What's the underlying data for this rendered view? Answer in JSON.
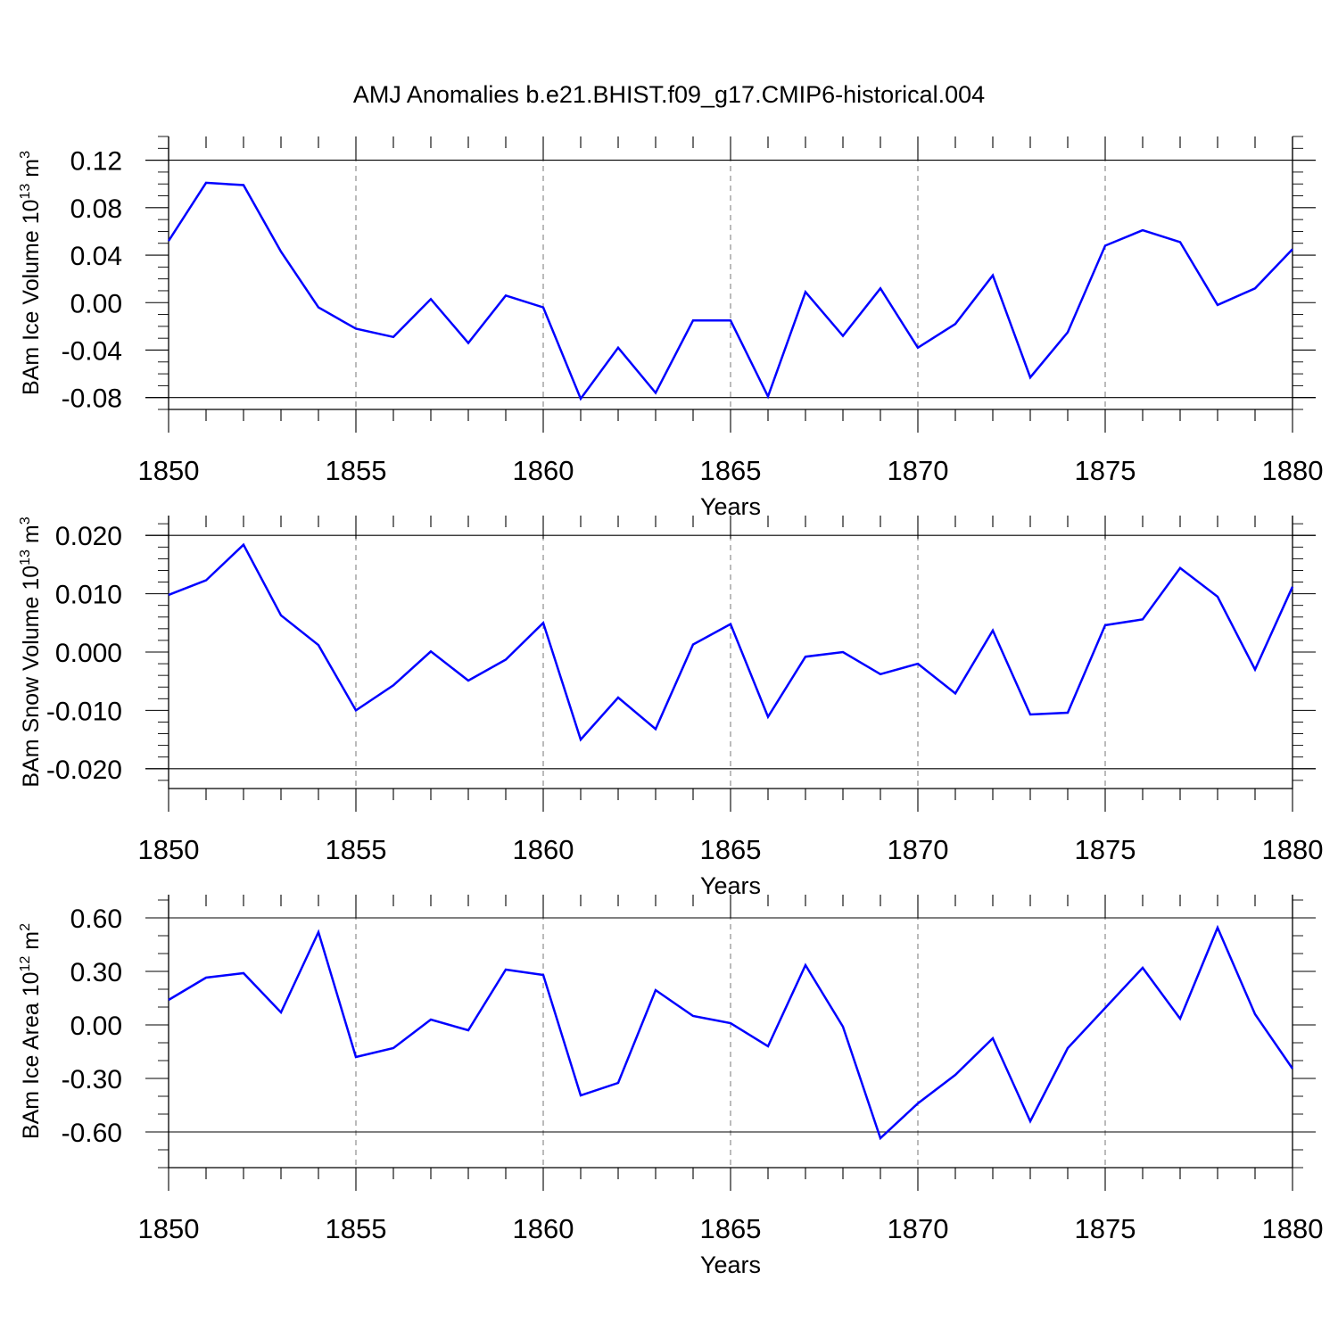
{
  "title": "AMJ Anomalies b.e21.BHIST.f09_g17.CMIP6-historical.004",
  "colors": {
    "line": "#0000ff",
    "axis": "#000000",
    "grid": "#777777"
  },
  "chart_data": [
    {
      "type": "line",
      "xlabel": "Years",
      "ylabel_main": "BAm Ice Volume 10",
      "ylabel_sup1": "13",
      "ylabel_unit": " m",
      "ylabel_sup2": "3",
      "xlim": [
        1850,
        1880
      ],
      "ylim": [
        -0.09,
        0.14
      ],
      "y_ticks": [
        -0.08,
        -0.04,
        0.0,
        0.04,
        0.08,
        0.12
      ],
      "y_tick_labels": [
        "-0.08",
        "-0.04",
        "0.00",
        "0.04",
        "0.08",
        "0.12"
      ],
      "y_minor_step": 0.01,
      "x_ticks": [
        1850,
        1855,
        1860,
        1865,
        1870,
        1875,
        1880
      ],
      "x_tick_labels": [
        "1850",
        "1855",
        "1860",
        "1865",
        "1870",
        "1875",
        "1880"
      ],
      "grid": "vertical dashed at major x ticks",
      "x": [
        1850,
        1851,
        1852,
        1853,
        1854,
        1855,
        1856,
        1857,
        1858,
        1859,
        1860,
        1861,
        1862,
        1863,
        1864,
        1865,
        1866,
        1867,
        1868,
        1869,
        1870,
        1871,
        1872,
        1873,
        1874,
        1875,
        1876,
        1877,
        1878,
        1879,
        1880
      ],
      "values": [
        0.052,
        0.101,
        0.099,
        0.043,
        -0.004,
        -0.022,
        -0.029,
        0.003,
        -0.034,
        0.006,
        -0.004,
        -0.081,
        -0.038,
        -0.076,
        -0.015,
        -0.015,
        -0.079,
        0.009,
        -0.028,
        0.012,
        -0.038,
        -0.018,
        0.023,
        -0.063,
        -0.025,
        0.048,
        0.061,
        0.051,
        -0.002,
        0.012,
        0.045
      ]
    },
    {
      "type": "line",
      "xlabel": "Years",
      "ylabel_main": "BAm Snow Volume 10",
      "ylabel_sup1": "13",
      "ylabel_unit": " m",
      "ylabel_sup2": "3",
      "xlim": [
        1850,
        1880
      ],
      "ylim": [
        -0.0234,
        0.0234
      ],
      "y_ticks": [
        -0.02,
        -0.01,
        0.0,
        0.01,
        0.02
      ],
      "y_tick_labels": [
        "-0.020",
        "-0.010",
        "0.000",
        "0.010",
        "0.020"
      ],
      "y_minor_step": 0.002,
      "x_ticks": [
        1850,
        1855,
        1860,
        1865,
        1870,
        1875,
        1880
      ],
      "x_tick_labels": [
        "1850",
        "1855",
        "1860",
        "1865",
        "1870",
        "1875",
        "1880"
      ],
      "grid": "vertical dashed at major x ticks",
      "x": [
        1850,
        1851,
        1852,
        1853,
        1854,
        1855,
        1856,
        1857,
        1858,
        1859,
        1860,
        1861,
        1862,
        1863,
        1864,
        1865,
        1866,
        1867,
        1868,
        1869,
        1870,
        1871,
        1872,
        1873,
        1874,
        1875,
        1876,
        1877,
        1878,
        1879,
        1880
      ],
      "values": [
        0.0098,
        0.0123,
        0.0184,
        0.0063,
        0.0012,
        -0.01,
        -0.0057,
        0.0001,
        -0.0049,
        -0.0013,
        0.005,
        -0.015,
        -0.0078,
        -0.0132,
        0.0013,
        0.0048,
        -0.0111,
        -0.0008,
        0.0,
        -0.0038,
        -0.002,
        -0.0071,
        0.0037,
        -0.0107,
        -0.0104,
        0.0046,
        0.0056,
        0.0144,
        0.0095,
        -0.003,
        0.0112
      ]
    },
    {
      "type": "line",
      "xlabel": "Years",
      "ylabel_main": "BAm Ice Area 10",
      "ylabel_sup1": "12",
      "ylabel_unit": " m",
      "ylabel_sup2": "2",
      "xlim": [
        1850,
        1880
      ],
      "ylim": [
        -0.8,
        0.73
      ],
      "y_ticks": [
        -0.6,
        -0.3,
        0.0,
        0.3,
        0.6
      ],
      "y_tick_labels": [
        "-0.60",
        "-0.30",
        "0.00",
        "0.30",
        "0.60"
      ],
      "y_minor_step": 0.1,
      "x_ticks": [
        1850,
        1855,
        1860,
        1865,
        1870,
        1875,
        1880
      ],
      "x_tick_labels": [
        "1850",
        "1855",
        "1860",
        "1865",
        "1870",
        "1875",
        "1880"
      ],
      "grid": "vertical dashed at major x ticks",
      "x": [
        1850,
        1851,
        1852,
        1853,
        1854,
        1855,
        1856,
        1857,
        1858,
        1859,
        1860,
        1861,
        1862,
        1863,
        1864,
        1865,
        1866,
        1867,
        1868,
        1869,
        1870,
        1871,
        1872,
        1873,
        1874,
        1875,
        1876,
        1877,
        1878,
        1879,
        1880
      ],
      "values": [
        0.14,
        0.265,
        0.29,
        0.07,
        0.52,
        -0.18,
        -0.13,
        0.03,
        -0.03,
        0.31,
        0.28,
        -0.395,
        -0.325,
        0.195,
        0.05,
        0.01,
        -0.12,
        0.335,
        -0.01,
        -0.635,
        -0.44,
        -0.28,
        -0.075,
        -0.54,
        -0.13,
        0.095,
        0.32,
        0.035,
        0.545,
        0.06,
        -0.245
      ]
    }
  ]
}
